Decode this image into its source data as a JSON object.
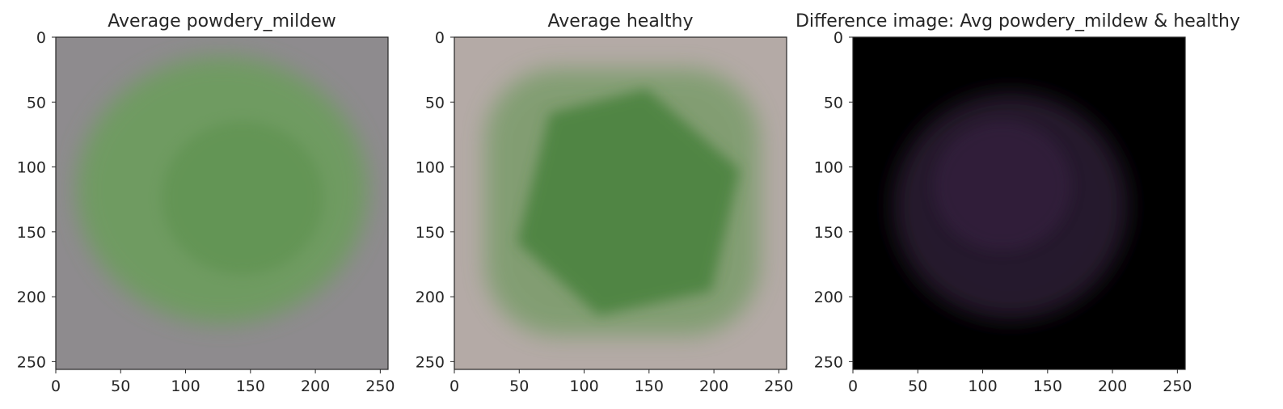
{
  "figure": {
    "panels": [
      {
        "title": "Average powdery_mildew",
        "background": "#8e8b8e",
        "blob_color": "#6b9e5a",
        "blob_dark": "#4f8a40",
        "extent": [
          0,
          256
        ]
      },
      {
        "title": "Average healthy",
        "background": "#b4aaa6",
        "blob_color": "#5a9448",
        "blob_dark": "#3f7e34",
        "extent": [
          0,
          256
        ]
      },
      {
        "title": "Difference image: Avg powdery_mildew & healthy",
        "background": "#000000",
        "blob_color": "#2a1a30",
        "blob_dark": "#3a2244",
        "extent": [
          0,
          256
        ]
      }
    ]
  },
  "chart_data": [
    {
      "type": "heatmap",
      "title": "Average powdery_mildew",
      "xlabel": "",
      "ylabel": "",
      "xlim": [
        0,
        256
      ],
      "ylim": [
        256,
        0
      ],
      "xticks": [
        0,
        50,
        100,
        150,
        200,
        250
      ],
      "yticks": [
        0,
        50,
        100,
        150,
        200,
        250
      ],
      "grid": false
    },
    {
      "type": "heatmap",
      "title": "Average healthy",
      "xlabel": "",
      "ylabel": "",
      "xlim": [
        0,
        256
      ],
      "ylim": [
        256,
        0
      ],
      "xticks": [
        0,
        50,
        100,
        150,
        200,
        250
      ],
      "yticks": [
        0,
        50,
        100,
        150,
        200,
        250
      ],
      "grid": false
    },
    {
      "type": "heatmap",
      "title": "Difference image: Avg powdery_mildew & healthy",
      "xlabel": "",
      "ylabel": "",
      "xlim": [
        0,
        256
      ],
      "ylim": [
        256,
        0
      ],
      "xticks": [
        0,
        50,
        100,
        150,
        200,
        250
      ],
      "yticks": [
        0,
        50,
        100,
        150,
        200,
        250
      ],
      "grid": false
    }
  ]
}
